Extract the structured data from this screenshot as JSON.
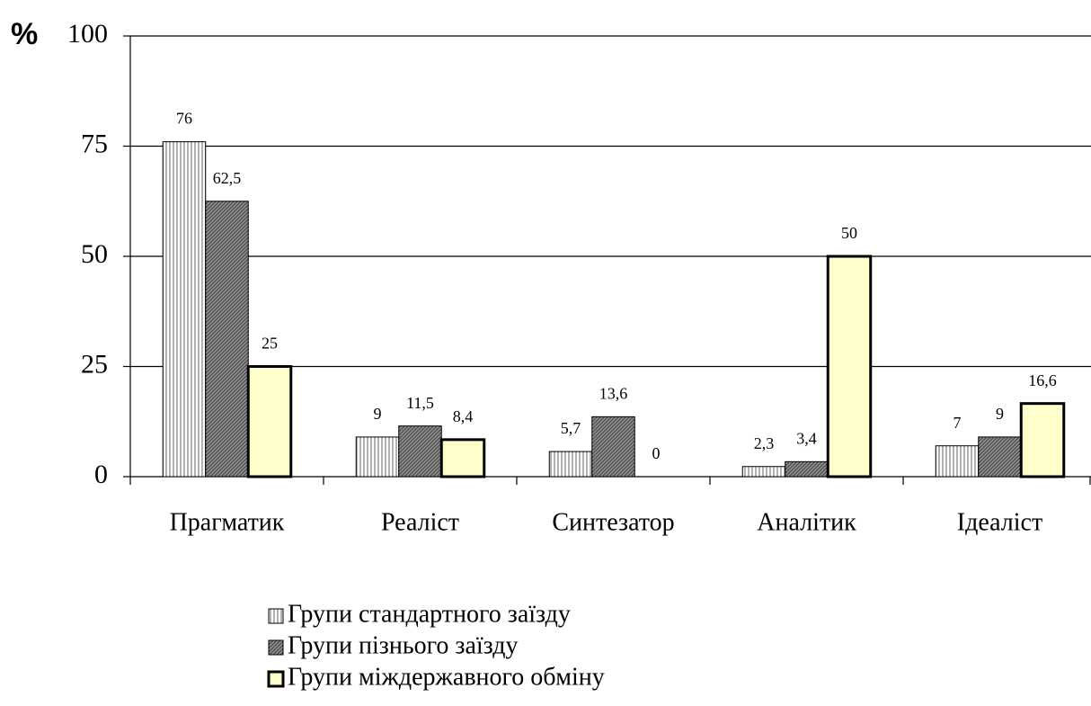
{
  "chart_data": {
    "type": "bar",
    "ylabel": "%",
    "categories": [
      "Прагматик",
      "Реаліст",
      "Синтезатор",
      "Аналітик",
      "Ідеаліст"
    ],
    "series": [
      {
        "name": "Групи стандартного заїзду",
        "color": "#b0b0b0",
        "pattern": "vertical",
        "values": [
          76,
          9,
          5.7,
          2.3,
          7
        ],
        "value_labels": [
          "76",
          "9",
          "5,7",
          "2,3",
          "7"
        ]
      },
      {
        "name": "Групи пізнього заїзду",
        "color": "#505050",
        "pattern": "diagonal",
        "values": [
          62.5,
          11.5,
          13.6,
          3.4,
          9
        ],
        "value_labels": [
          "62,5",
          "11,5",
          "13,6",
          "3,4",
          "9"
        ]
      },
      {
        "name": "Групи міждержавного обміну",
        "color": "#ffffcc",
        "pattern": "solid",
        "values": [
          25,
          8.4,
          0,
          50,
          16.6
        ],
        "value_labels": [
          "25",
          "8,4",
          "0",
          "50",
          "16,6"
        ]
      }
    ],
    "ylim": [
      0,
      100
    ],
    "yticks": [
      0,
      25,
      50,
      75,
      100
    ],
    "grid": true
  }
}
